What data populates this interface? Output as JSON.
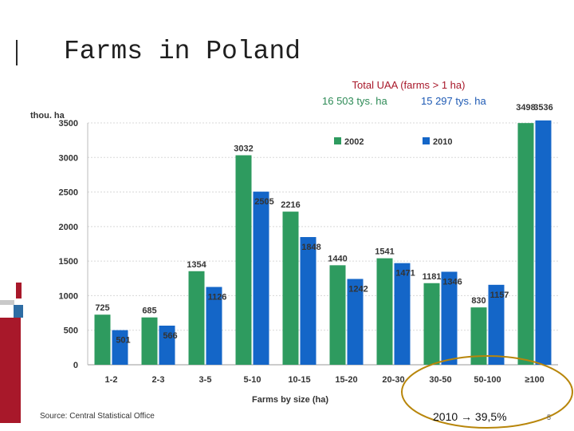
{
  "slide": {
    "title": "Farms in Poland",
    "source": "Source: Central Statistical Office",
    "page_number": "5",
    "highlight_text": "2010 → 39,5%"
  },
  "uaa": {
    "title": "Total UAA  (farms  > 1 ha)",
    "value_2002": "16 503 tys. ha",
    "value_2010": "15 297 tys. ha"
  },
  "colors": {
    "series_2002": "#2e9b5f",
    "series_2010": "#1466c8",
    "accent_red": "#a8182a",
    "highlight_circle": "#b8860b"
  },
  "chart_data": {
    "type": "bar",
    "title": "",
    "xlabel": "Farms by size (ha)",
    "ylabel": "thou. ha",
    "ylim": [
      0,
      3500
    ],
    "yticks": [
      0,
      500,
      1000,
      1500,
      2000,
      2500,
      3000,
      3500
    ],
    "grid": true,
    "legend": "top",
    "categories": [
      "1-2",
      "2-3",
      "3-5",
      "5-10",
      "10-15",
      "15-20",
      "20-30",
      "30-50",
      "50-100",
      "≥100"
    ],
    "series": [
      {
        "name": "2002",
        "values": [
          725,
          685,
          1354,
          3032,
          2216,
          1440,
          1541,
          1181,
          830,
          3498
        ]
      },
      {
        "name": "2010",
        "values": [
          501,
          566,
          1126,
          2505,
          1848,
          1242,
          1471,
          1346,
          1157,
          3536
        ]
      }
    ]
  }
}
